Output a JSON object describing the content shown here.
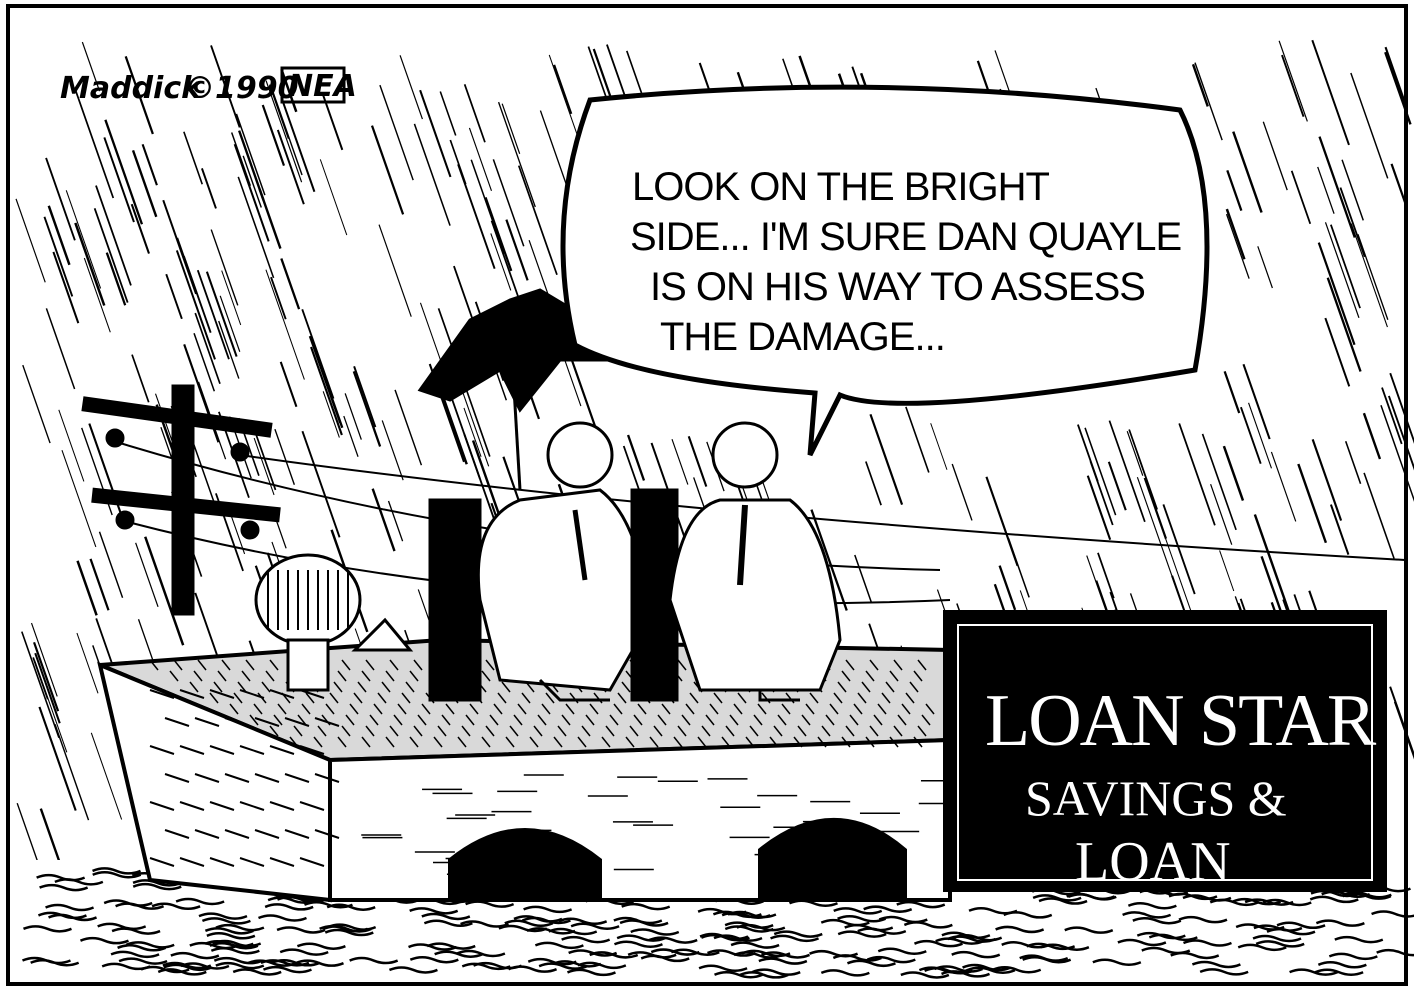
{
  "signature": {
    "artist": "Maddick",
    "copyright": "©1990",
    "syndicate": "NEA"
  },
  "speech_bubble": {
    "lines": [
      "LOOK ON THE BRIGHT",
      "SIDE... I'M SURE DAN QUAYLE",
      "IS ON HIS WAY TO ASSESS",
      "THE DAMAGE..."
    ]
  },
  "sign": {
    "line1": "LOAN STAR",
    "line2": "SAVINGS &",
    "line3": "LOAN"
  },
  "colors": {
    "ink": "#000000",
    "paper": "#ffffff",
    "rooftop": "#d9d9d9"
  }
}
